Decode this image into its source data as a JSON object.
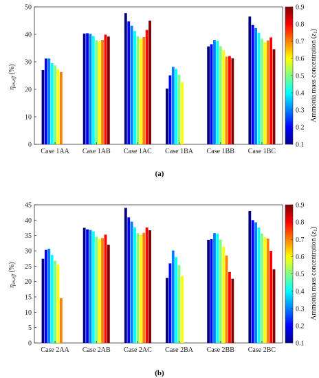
{
  "chart_data": [
    {
      "type": "bar",
      "caption": "(a)",
      "ylabel": "η_ex,eff (%)",
      "ylim": [
        0,
        50
      ],
      "yticks": [
        0,
        10,
        20,
        30,
        40,
        50
      ],
      "categories": [
        "Case 1AA",
        "Case 1AB",
        "Case 1AC",
        "Case 1BA",
        "Case 1BB",
        "Case 1BC"
      ],
      "colorbar": {
        "label": "Ammonia mass concentration (z₁)",
        "range": [
          0.1,
          0.9
        ],
        "ticks": [
          "0.1",
          "0.2",
          "0.3",
          "0.4",
          "0.5",
          "0.6",
          "0.7",
          "0.8",
          "0.9"
        ]
      },
      "z_levels": [
        0.1,
        0.2,
        0.3,
        0.4,
        0.5,
        0.6,
        0.7,
        0.8,
        0.9
      ],
      "values": [
        [
          27.0,
          31.2,
          31.2,
          29.5,
          28.7,
          27.2,
          26.3,
          null,
          null
        ],
        [
          40.3,
          40.4,
          40.2,
          39.4,
          37.9,
          37.4,
          38.0,
          39.9,
          39.2
        ],
        [
          47.7,
          44.7,
          43.1,
          41.2,
          39.3,
          38.4,
          39.0,
          41.6,
          45.0
        ],
        [
          20.3,
          25.1,
          28.2,
          27.4,
          25.3,
          22.6,
          null,
          null,
          null
        ],
        [
          35.6,
          36.4,
          38.0,
          37.6,
          35.7,
          34.2,
          31.9,
          32.1,
          31.3
        ],
        [
          46.5,
          43.5,
          42.3,
          40.6,
          38.4,
          37.1,
          37.8,
          38.9,
          34.6
        ]
      ]
    },
    {
      "type": "bar",
      "caption": "(b)",
      "ylabel": "η_ex,eff (%)",
      "ylim": [
        0,
        45
      ],
      "yticks": [
        0,
        5,
        10,
        15,
        20,
        25,
        30,
        35,
        40,
        45
      ],
      "categories": [
        "Case 2AA",
        "Case 2AB",
        "Case 2AC",
        "Case 2BA",
        "Case 2BB",
        "Case 2BC"
      ],
      "colorbar": {
        "label": "Ammonia mass concentration (z₁)",
        "range": [
          0.1,
          0.9
        ],
        "ticks": [
          "0.1",
          "0.2",
          "0.3",
          "0.4",
          "0.5",
          "0.6",
          "0.7",
          "0.8",
          "0.9"
        ]
      },
      "z_levels": [
        0.1,
        0.2,
        0.3,
        0.4,
        0.5,
        0.6,
        0.7,
        0.8,
        0.9
      ],
      "values": [
        [
          27.4,
          30.3,
          30.7,
          28.7,
          26.8,
          25.5,
          14.6,
          null,
          null
        ],
        [
          37.5,
          37.0,
          36.8,
          36.3,
          34.6,
          33.9,
          34.2,
          35.3,
          32.0
        ],
        [
          44.0,
          40.9,
          39.5,
          37.6,
          35.8,
          35.2,
          35.9,
          37.6,
          36.7
        ],
        [
          21.2,
          25.9,
          30.1,
          28.0,
          25.3,
          21.8,
          null,
          null,
          null
        ],
        [
          33.6,
          33.8,
          35.8,
          35.6,
          33.7,
          31.4,
          28.5,
          23.1,
          20.9
        ],
        [
          43.0,
          40.0,
          39.3,
          37.6,
          35.7,
          34.4,
          34.0,
          30.0,
          24.0
        ]
      ]
    }
  ]
}
